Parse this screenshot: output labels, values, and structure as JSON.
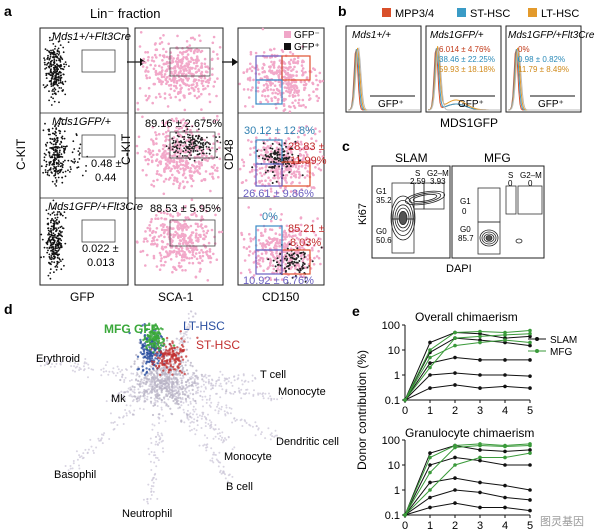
{
  "panel_a": {
    "letter": "a",
    "title": "Lin⁻ fraction",
    "rows": [
      {
        "genotype": "Mds1+/+Flt3Cre",
        "gfp_pos": "",
        "gfp_pos_sd": ""
      },
      {
        "genotype": "Mds1GFP/+",
        "gfp_pos": "0.48 ±",
        "gfp_pos_sd": "0.44"
      },
      {
        "genotype": "Mds1GFP/+Flt3Cre",
        "gfp_pos": "0.022 ±",
        "gfp_pos_sd": "0.013"
      }
    ],
    "col2_values": [
      "",
      "89.16 ± 2.675%",
      "88.53 ± 5.95%"
    ],
    "legend": {
      "neg": "GFP⁻",
      "pos": "GFP⁺"
    },
    "col3": [
      {
        "top": "",
        "right": "",
        "right_sd": "",
        "bottom": ""
      },
      {
        "top": "30.12 ± 12.8%",
        "right": "28.83 ±",
        "right_sd": "11.99%",
        "bottom": "26.61 ± 9.86%"
      },
      {
        "top": "0%",
        "right": "85.21 ±",
        "right_sd": "8.03%",
        "bottom": "10.92 ± 6.76%"
      }
    ],
    "axes": {
      "y1": "C-KIT",
      "x1": "GFP",
      "y2": "C-KIT",
      "x2": "SCA-1",
      "y3": "CD48",
      "x3": "CD150"
    }
  },
  "panel_b": {
    "letter": "b",
    "legend": [
      {
        "label": "MPP3/4",
        "color": "#d94f2a"
      },
      {
        "label": "ST-HSC",
        "color": "#3a9bc6"
      },
      {
        "label": "LT-HSC",
        "color": "#e39a2c"
      }
    ],
    "panels": [
      {
        "genotype": "Mds1+/+",
        "gate": "GFP⁺",
        "values": []
      },
      {
        "genotype": "Mds1GFP/+",
        "gate": "GFP⁺",
        "values": [
          "6.014 ± 4.76%",
          "38.46 ± 22.25%",
          "59.93 ± 18.18%"
        ]
      },
      {
        "genotype": "Mds1GFP/+Flt3Cre",
        "gate": "GFP⁺",
        "values": [
          "0%",
          "0.98 ± 0.82%",
          "11.79 ± 8.49%"
        ]
      }
    ],
    "xlabel": "MDS1GFP"
  },
  "panel_c": {
    "letter": "c",
    "ylabel": "Ki67",
    "xlabel": "DAPI",
    "slam": {
      "title": "SLAM",
      "g1": "G1",
      "g1v": "35.2",
      "s": "S",
      "sv": "2.59",
      "g2m": "G2–M",
      "g2mv": "3.93",
      "g0": "G0",
      "g0v": "50.6"
    },
    "mfg": {
      "title": "MFG",
      "g1": "G1",
      "g1v": "0",
      "s": "S",
      "sv": "0",
      "g2m": "G2–M",
      "g2mv": "0",
      "g0": "G0",
      "g0v": "85.7"
    }
  },
  "panel_d": {
    "letter": "d",
    "labels": [
      "MFG GFP",
      "LT-HSC",
      "ST-HSC",
      "Erythroid",
      "Mk",
      "T cell",
      "Monocyte",
      "Dendritic cell",
      "Monocyte",
      "Basophil",
      "B cell",
      "Neutrophil"
    ],
    "label_colors": {
      "mfg": "#3aa83a",
      "lt": "#2b4fa0",
      "st": "#c23030"
    }
  },
  "panel_e": {
    "letter": "e",
    "ylabel": "Donor contribution (%)",
    "legend": [
      {
        "label": "SLAM",
        "color": "#111111"
      },
      {
        "label": "MFG",
        "color": "#3a9a3a"
      }
    ],
    "watermark": "图灵基因"
  },
  "chart_data": [
    {
      "type": "line",
      "title": "Overall chimaerism",
      "xlabel": "",
      "ylabel": "Donor contribution (%)",
      "x": [
        0,
        1,
        2,
        3,
        4,
        5
      ],
      "y_scale": "log",
      "ylim": [
        0.1,
        100
      ],
      "series": [
        {
          "name": "SLAM",
          "values": [
            0.1,
            20,
            50,
            45,
            30,
            35
          ]
        },
        {
          "name": "SLAM",
          "values": [
            0.1,
            8,
            30,
            25,
            20,
            15
          ]
        },
        {
          "name": "SLAM",
          "values": [
            0.1,
            3,
            5,
            4,
            4,
            4
          ]
        },
        {
          "name": "SLAM",
          "values": [
            0.1,
            1,
            1.2,
            1,
            1,
            0.9
          ]
        },
        {
          "name": "SLAM",
          "values": [
            0.1,
            0.3,
            0.4,
            0.3,
            0.35,
            0.3
          ]
        },
        {
          "name": "MFG",
          "values": [
            0.1,
            10,
            50,
            55,
            50,
            60
          ]
        },
        {
          "name": "MFG",
          "values": [
            0.1,
            2,
            30,
            35,
            40,
            45
          ]
        },
        {
          "name": "MFG",
          "values": [
            0.1,
            5,
            15,
            20,
            25,
            20
          ]
        }
      ]
    },
    {
      "type": "line",
      "title": "Granulocyte chimaerism",
      "xlabel": "",
      "ylabel": "Donor contribution (%)",
      "x": [
        0,
        1,
        2,
        3,
        4,
        5
      ],
      "y_scale": "log",
      "ylim": [
        0.1,
        100
      ],
      "series": [
        {
          "name": "SLAM",
          "values": [
            0.1,
            30,
            60,
            40,
            35,
            40
          ]
        },
        {
          "name": "SLAM",
          "values": [
            0.1,
            10,
            20,
            15,
            10,
            10
          ]
        },
        {
          "name": "SLAM",
          "values": [
            0.1,
            2,
            3,
            2,
            1.5,
            1
          ]
        },
        {
          "name": "SLAM",
          "values": [
            0.1,
            0.5,
            1,
            0.8,
            0.5,
            0.4
          ]
        },
        {
          "name": "SLAM",
          "values": [
            0.1,
            0.2,
            0.3,
            0.2,
            0.2,
            0.15
          ]
        },
        {
          "name": "MFG",
          "values": [
            0.1,
            20,
            60,
            70,
            60,
            70
          ]
        },
        {
          "name": "MFG",
          "values": [
            0.1,
            5,
            50,
            60,
            55,
            60
          ]
        },
        {
          "name": "MFG",
          "values": [
            0.1,
            1,
            10,
            20,
            20,
            30
          ]
        }
      ]
    }
  ]
}
